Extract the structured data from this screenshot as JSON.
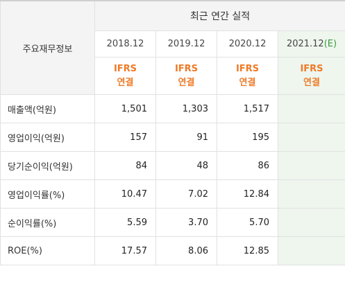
{
  "header": {
    "row_title": "주요재무정보",
    "group_title": "최근 연간 실적"
  },
  "periods": [
    {
      "label": "2018.12",
      "estimate": false,
      "std_line1": "IFRS",
      "std_line2": "연결"
    },
    {
      "label": "2019.12",
      "estimate": false,
      "std_line1": "IFRS",
      "std_line2": "연결"
    },
    {
      "label": "2020.12",
      "estimate": false,
      "std_line1": "IFRS",
      "std_line2": "연결"
    },
    {
      "label": "2021.12",
      "estimate": true,
      "estimate_tag": "(E)",
      "std_line1": "IFRS",
      "std_line2": "연결"
    }
  ],
  "rows": [
    {
      "label": "매출액(억원)",
      "values": [
        "1,501",
        "1,303",
        "1,517",
        ""
      ]
    },
    {
      "label": "영업이익(억원)",
      "values": [
        "157",
        "91",
        "195",
        ""
      ]
    },
    {
      "label": "당기순이익(억원)",
      "values": [
        "84",
        "48",
        "86",
        ""
      ]
    },
    {
      "label": "영업이익률(%)",
      "values": [
        "10.47",
        "7.02",
        "12.84",
        ""
      ]
    },
    {
      "label": "순이익률(%)",
      "values": [
        "5.59",
        "3.70",
        "5.70",
        ""
      ]
    },
    {
      "label": "ROE(%)",
      "values": [
        "17.57",
        "8.06",
        "12.85",
        ""
      ]
    }
  ],
  "colors": {
    "accent_orange": "#ef7a27",
    "estimate_bg": "#eef6ee",
    "estimate_tag": "#3a9a3a",
    "header_bg": "#f4f4f4",
    "border": "#e1e1e1"
  }
}
